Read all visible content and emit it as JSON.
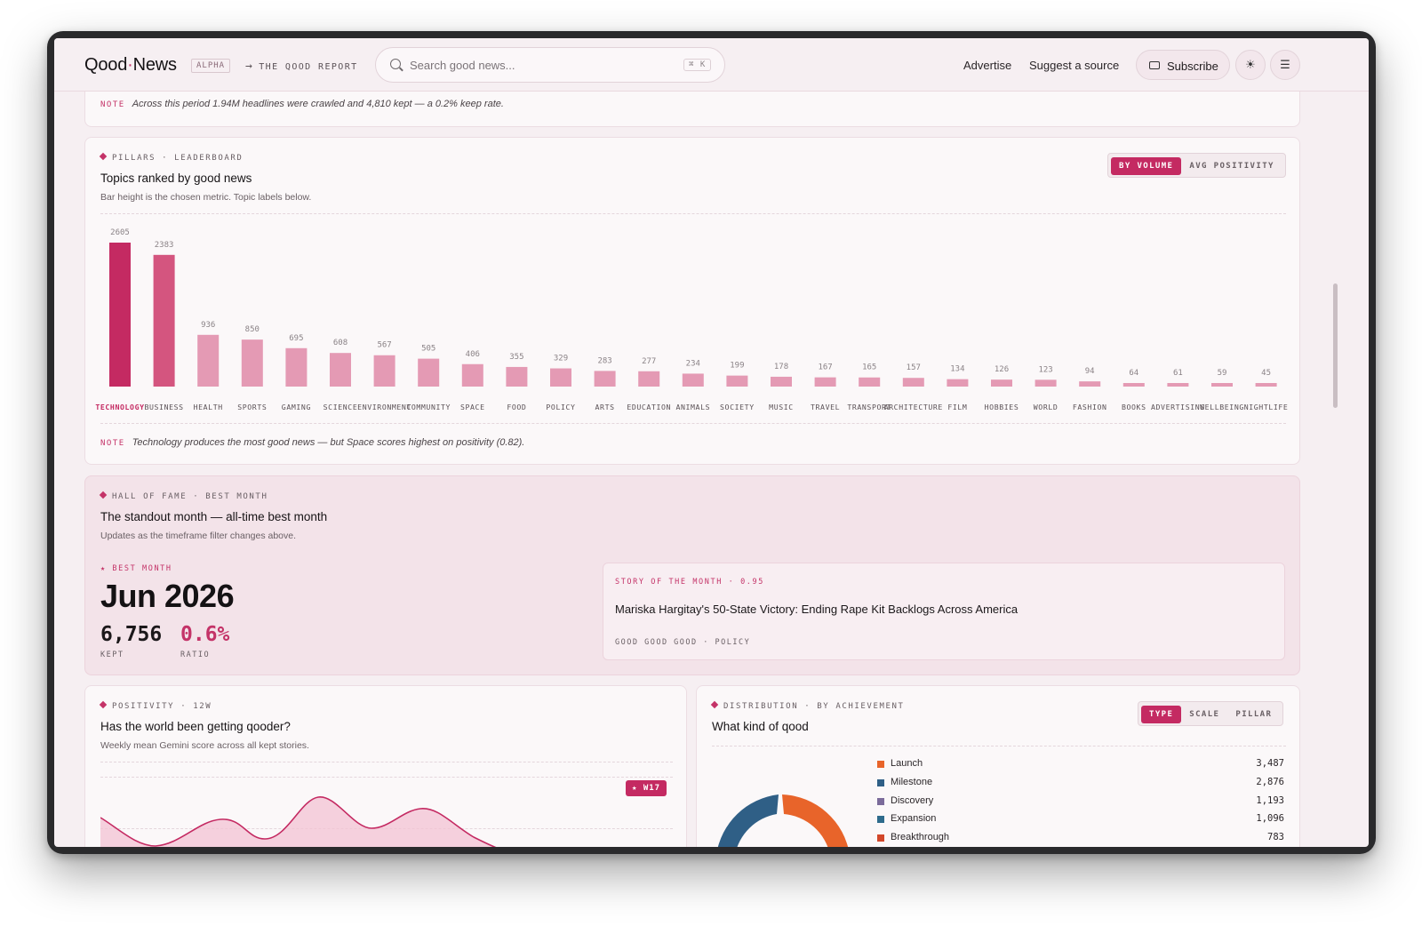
{
  "header": {
    "brand_left": "Qood",
    "brand_dot": "·",
    "brand_right": "News",
    "badge": "ALPHA",
    "report_arrow": "→",
    "report_label": "THE QOOD REPORT",
    "search_placeholder": "Search good news...",
    "search_shortcut": "⌘ K",
    "nav": {
      "advertise": "Advertise",
      "suggest": "Suggest a source"
    },
    "subscribe": "Subscribe",
    "theme_icon": "sun-icon",
    "menu_icon": "menu-icon"
  },
  "top_note": {
    "tag": "NOTE",
    "text": "Across this period 1.94M headlines were crawled and 4,810 kept — a 0.2% keep rate."
  },
  "pillars": {
    "eyebrow": "PILLARS · LEADERBOARD",
    "title": "Topics ranked by good news",
    "subtitle": "Bar height is the chosen metric. Topic labels below.",
    "toggle": {
      "by_volume": "BY VOLUME",
      "avg_positivity": "AVG POSITIVITY",
      "active": "by_volume"
    },
    "note_tag": "NOTE",
    "note": "Technology produces the most good news — but Space scores highest on positivity (0.82)."
  },
  "chart_data": {
    "type": "bar",
    "categories": [
      "TECHNOLOGY",
      "BUSINESS",
      "HEALTH",
      "SPORTS",
      "GAMING",
      "SCIENCE",
      "ENVIRONMENT",
      "COMMUNITY",
      "SPACE",
      "FOOD",
      "POLICY",
      "ARTS",
      "EDUCATION",
      "ANIMALS",
      "SOCIETY",
      "MUSIC",
      "TRAVEL",
      "TRANSPORT",
      "ARCHITECTURE",
      "FILM",
      "HOBBIES",
      "WORLD",
      "FASHION",
      "BOOKS",
      "ADVERTISING",
      "WELLBEING",
      "NIGHTLIFE"
    ],
    "values": [
      2605,
      2383,
      936,
      850,
      695,
      608,
      567,
      505,
      406,
      355,
      329,
      283,
      277,
      234,
      199,
      178,
      167,
      165,
      157,
      134,
      126,
      123,
      94,
      64,
      61,
      59,
      45
    ],
    "title": "Topics ranked by good news",
    "colors": {
      "top1": "#c42a62",
      "top2": "#d4557f",
      "rest": "#e49ab4",
      "highlight_label": "#c42a62"
    }
  },
  "hall": {
    "eyebrow": "HALL OF FAME · BEST MONTH",
    "title": "The standout month — all-time best month",
    "subtitle": "Updates as the timeframe filter changes above.",
    "best_label": "★ BEST MONTH",
    "month": "Jun 2026",
    "kept_value": "6,756",
    "kept_label": "KEPT",
    "ratio_value": "0.6%",
    "ratio_label": "RATIO",
    "story_eyebrow": "STORY OF THE MONTH · 0.95",
    "story_title": "Mariska Hargitay's 50-State Victory: Ending Rape Kit Backlogs Across America",
    "story_tags": "GOOD GOOD GOOD · POLICY"
  },
  "positivity": {
    "eyebrow": "POSITIVITY · 12W",
    "title": "Has the world been getting qooder?",
    "subtitle": "Weekly mean Gemini score across all kept stories.",
    "badge": "★ W17"
  },
  "distribution": {
    "eyebrow": "DISTRIBUTION · BY ACHIEVEMENT",
    "title": "What kind of qood",
    "toggle": [
      "TYPE",
      "SCALE",
      "PILLAR"
    ],
    "active": "TYPE",
    "items": [
      {
        "name": "Launch",
        "value": "3,487",
        "color": "#e8642a"
      },
      {
        "name": "Milestone",
        "value": "2,876",
        "color": "#2f5f86"
      },
      {
        "name": "Discovery",
        "value": "1,193",
        "color": "#7b6b9a"
      },
      {
        "name": "Expansion",
        "value": "1,096",
        "color": "#2e6b8c"
      },
      {
        "name": "Breakthrough",
        "value": "783",
        "color": "#d2472a"
      }
    ]
  }
}
